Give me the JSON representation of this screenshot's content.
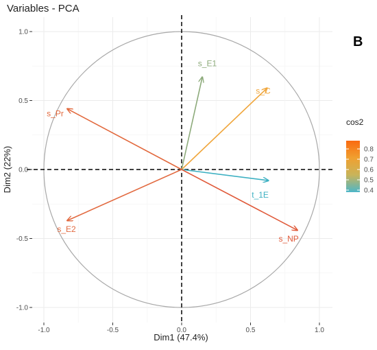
{
  "chart_data": {
    "type": "scatter",
    "title": "Variables - PCA",
    "panel_label": "B",
    "xlabel": "Dim1 (47.4%)",
    "ylabel": "Dim2 (22%)",
    "xlim": [
      -1.0,
      1.0
    ],
    "ylim": [
      -1.0,
      1.0
    ],
    "xticks": [
      "-1.0",
      "-0.5",
      "0.0",
      "0.5",
      "1.0"
    ],
    "yticks": [
      "1.0",
      "0.5",
      "0.0",
      "-0.5",
      "-1.0"
    ],
    "grid": true,
    "unit_circle": true,
    "legend": {
      "title": "cos2",
      "placement": "right",
      "ticks": [
        "0.8",
        "0.7",
        "0.6",
        "0.5",
        "0.4"
      ],
      "range": [
        0.38,
        0.88
      ],
      "colors": [
        "#4db6c8",
        "#c9b45a",
        "#f0a030",
        "#fa6a10"
      ]
    },
    "series": [
      {
        "name": "s_E1",
        "x": 0.15,
        "y": 0.67,
        "cos2": 0.47,
        "color": "#8caa7a"
      },
      {
        "name": "s_C",
        "x": 0.62,
        "y": 0.59,
        "cos2": 0.72,
        "color": "#f0a63c"
      },
      {
        "name": "s_Pr",
        "x": -0.83,
        "y": 0.44,
        "cos2": 0.88,
        "color": "#e2683c"
      },
      {
        "name": "t_1E",
        "x": 0.63,
        "y": -0.08,
        "cos2": 0.4,
        "color": "#3cb0c2"
      },
      {
        "name": "s_E2",
        "x": -0.83,
        "y": -0.37,
        "cos2": 0.82,
        "color": "#e26a40"
      },
      {
        "name": "s_NP",
        "x": 0.84,
        "y": -0.44,
        "cos2": 0.9,
        "color": "#e05a3a"
      }
    ]
  }
}
